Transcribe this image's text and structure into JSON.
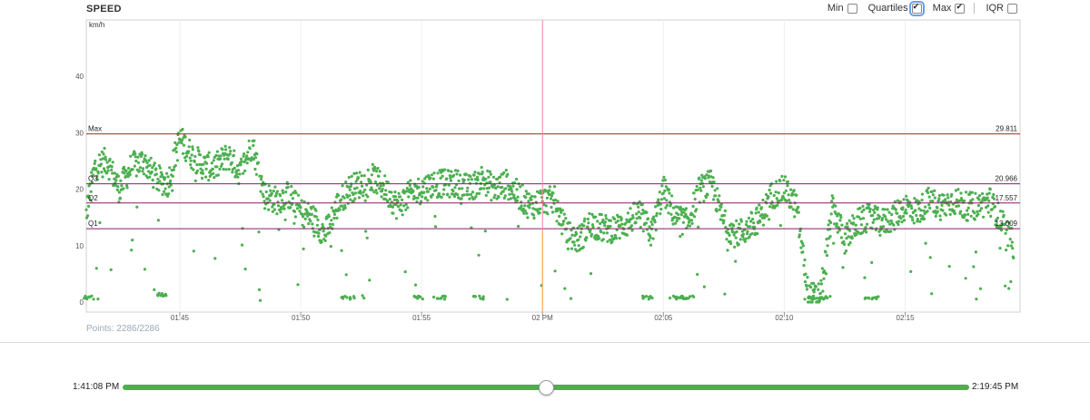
{
  "panel": {
    "title": "SPEED",
    "points_label": "Points:",
    "points_value": "2286/2286"
  },
  "controls": [
    {
      "label": "Min",
      "checked": false
    },
    {
      "label": "Quartiles",
      "checked": true
    },
    {
      "label": "Max",
      "checked": true
    },
    {
      "label": "IQR",
      "checked": false
    }
  ],
  "chart_data": {
    "type": "scatter",
    "ylabel": "km/h",
    "ylim": [
      0,
      50
    ],
    "yticks": [
      0,
      10,
      20,
      30,
      40
    ],
    "x_range": [
      "1:41:08 PM",
      "2:19:45 PM"
    ],
    "xticks": [
      "01:45",
      "01:50",
      "01:55",
      "02 PM",
      "02:05",
      "02:10",
      "02:15"
    ],
    "series_color": "#4caf50",
    "reference_lines": [
      {
        "name": "Max",
        "value": 29.811,
        "label": "29.811",
        "color": "#b22222"
      },
      {
        "name": "Q3",
        "value": 20.966,
        "label": "20.966",
        "color": "#8b1a6b"
      },
      {
        "name": "Q2",
        "value": 17.557,
        "label": "17.557",
        "color": "#8b1a6b"
      },
      {
        "name": "Q1",
        "value": 13.009,
        "label": "13.009",
        "color": "#8b1a6b"
      }
    ],
    "cursor_time": "02 PM",
    "speed_profile": [
      [
        "01:41",
        13
      ],
      [
        "01:41.5",
        24
      ],
      [
        "01:42",
        25
      ],
      [
        "01:42.5",
        20
      ],
      [
        "01:43",
        24
      ],
      [
        "01:43.5",
        25
      ],
      [
        "01:44",
        22
      ],
      [
        "01:44.5",
        21
      ],
      [
        "01:45",
        29
      ],
      [
        "01:45.5",
        26
      ],
      [
        "01:46",
        24
      ],
      [
        "01:46.5",
        24
      ],
      [
        "01:47",
        26
      ],
      [
        "01:47.5",
        23
      ],
      [
        "01:48",
        28
      ],
      [
        "01:48.5",
        19
      ],
      [
        "01:49",
        18
      ],
      [
        "01:49.5",
        19
      ],
      [
        "01:50",
        16
      ],
      [
        "01:50.5",
        15
      ],
      [
        "01:51",
        12
      ],
      [
        "01:51.5",
        17
      ],
      [
        "01:52",
        20
      ],
      [
        "01:52.5",
        21
      ],
      [
        "01:53",
        22
      ],
      [
        "01:53.5",
        20
      ],
      [
        "01:54",
        17
      ],
      [
        "01:54.5",
        19
      ],
      [
        "01:55",
        20
      ],
      [
        "01:55.5",
        21
      ],
      [
        "01:56",
        21
      ],
      [
        "01:56.5",
        21
      ],
      [
        "01:57",
        20
      ],
      [
        "01:57.5",
        22
      ],
      [
        "01:58",
        20
      ],
      [
        "01:58.5",
        21
      ],
      [
        "01:59",
        19
      ],
      [
        "01:59.5",
        17
      ],
      [
        "02:00",
        18
      ],
      [
        "02:00.5",
        18
      ],
      [
        "02:01",
        12
      ],
      [
        "02:01.5",
        11
      ],
      [
        "02:02",
        14
      ],
      [
        "02:02.5",
        13
      ],
      [
        "02:03",
        13
      ],
      [
        "02:03.5",
        14
      ],
      [
        "02:04",
        16
      ],
      [
        "02:04.5",
        12
      ],
      [
        "02:05",
        20
      ],
      [
        "02:05.5",
        15
      ],
      [
        "02:06",
        14
      ],
      [
        "02:06.5",
        20
      ],
      [
        "02:07",
        21
      ],
      [
        "02:07.5",
        14
      ],
      [
        "02:08",
        12
      ],
      [
        "02:08.5",
        13
      ],
      [
        "02:09",
        15
      ],
      [
        "02:09.5",
        19
      ],
      [
        "02:10",
        20
      ],
      [
        "02:10.5",
        17
      ],
      [
        "02:11",
        1
      ],
      [
        "02:11.5",
        1
      ],
      [
        "02:12",
        17
      ],
      [
        "02:12.5",
        11
      ],
      [
        "02:13",
        14
      ],
      [
        "02:13.5",
        15
      ],
      [
        "02:14",
        14
      ],
      [
        "02:14.5",
        15
      ],
      [
        "02:15",
        17
      ],
      [
        "02:15.5",
        16
      ],
      [
        "02:16",
        18
      ],
      [
        "02:16.5",
        17
      ],
      [
        "02:17",
        18
      ],
      [
        "02:17.5",
        17
      ],
      [
        "02:18",
        17
      ],
      [
        "02:18.5",
        18
      ],
      [
        "02:19",
        14
      ],
      [
        "02:19.5",
        10
      ]
    ],
    "stops": [
      [
        "01:41.2",
        0.5
      ],
      [
        "01:44.2",
        1
      ],
      [
        "01:51.8",
        0.5
      ],
      [
        "01:54.8",
        0.5
      ],
      [
        "01:55.6",
        0.5
      ],
      [
        "01:57.3",
        0.5
      ],
      [
        "02:04.3",
        0.5
      ],
      [
        "02:05.4",
        0.5
      ],
      [
        "02:05.9",
        0.5
      ],
      [
        "02:11",
        0.5
      ],
      [
        "02:11.6",
        0.5
      ],
      [
        "02:13.5",
        0.5
      ]
    ]
  },
  "slider": {
    "start_label": "1:41:08 PM",
    "end_label": "2:19:45 PM",
    "value_fraction": 0.5
  }
}
